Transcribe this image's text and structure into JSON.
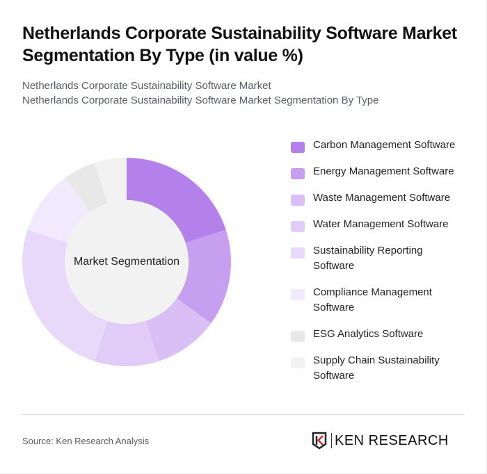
{
  "header": {
    "title": "Netherlands Corporate Sustainability Software Market Segmentation By Type (in value %)",
    "subtitle_line1": "Netherlands Corporate Sustainability Software Market",
    "subtitle_line2": "Netherlands Corporate Sustainability Software Market Segmentation By Type"
  },
  "chart": {
    "center_label": "Market Segmentation"
  },
  "legend": {
    "items": [
      {
        "label": "Carbon Management Software",
        "color": "#b481ea"
      },
      {
        "label": "Energy Management Software",
        "color": "#c69ff0"
      },
      {
        "label": "Waste Management Software",
        "color": "#d9bff6"
      },
      {
        "label": "Water Management Software",
        "color": "#e1cbf7"
      },
      {
        "label": "Sustainability Reporting Software",
        "color": "#e8d8fa"
      },
      {
        "label": "Compliance Management Software",
        "color": "#f1eafc"
      },
      {
        "label": "ESG Analytics Software",
        "color": "#e8e8e8"
      },
      {
        "label": "Supply Chain Sustainability Software",
        "color": "#f2f2f2"
      }
    ]
  },
  "footer": {
    "source": "Source: Ken Research Analysis",
    "brand": "KEN RESEARCH"
  },
  "chart_data": {
    "type": "pie",
    "subtype": "donut",
    "title": "Netherlands Corporate Sustainability Software Market Segmentation By Type (in value %)",
    "center_label": "Market Segmentation",
    "categories": [
      "Carbon Management Software",
      "Energy Management Software",
      "Waste Management Software",
      "Water Management Software",
      "Sustainability Reporting Software",
      "Compliance Management Software",
      "ESG Analytics Software",
      "Supply Chain Sustainability Software"
    ],
    "values": [
      20,
      15,
      10,
      10,
      25,
      10,
      5,
      5
    ],
    "colors": [
      "#b481ea",
      "#c69ff0",
      "#d9bff6",
      "#e1cbf7",
      "#e8d8fa",
      "#f1eafc",
      "#e8e8e8",
      "#f2f2f2"
    ],
    "unit": "%",
    "legend_position": "right",
    "start_angle": "12 o'clock, clockwise"
  }
}
